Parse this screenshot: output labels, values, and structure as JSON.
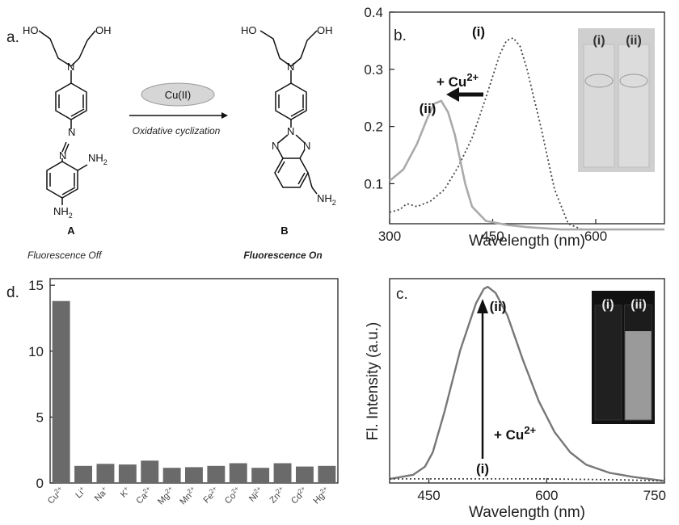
{
  "panel_a": {
    "label": "a.",
    "reagent": "Cu(II)",
    "reaction_note": "Oxidative cyclization",
    "compound_a": {
      "name": "A",
      "state": "Fluorescence Off"
    },
    "compound_b": {
      "name": "B",
      "state": "Fluorescence On"
    },
    "atoms": {
      "ho": "HO",
      "oh": "OH",
      "n": "N",
      "nh": "NH",
      "two": "2"
    }
  },
  "panel_b": {
    "label": "b.",
    "ann_i": "(i)",
    "ann_ii": "(ii)",
    "ann_cu": "+ Cu",
    "ann_cu_sup": "2+",
    "inset_labels": [
      "(i)",
      "(ii)"
    ]
  },
  "panel_c": {
    "label": "c.",
    "ann_i": "(i)",
    "ann_ii": "(ii)",
    "ann_cu": "+ Cu",
    "ann_cu_sup": "2+",
    "inset_labels": [
      "(i)",
      "(ii)"
    ]
  },
  "panel_d": {
    "label": "d."
  },
  "colors": {
    "axis": "#222222",
    "solid_gray": "#aaaaaa",
    "dotted": "#444444",
    "emission": "#777777",
    "bar": "#6a6a6a",
    "inset_light": "#d8d8d8",
    "inset_dark": "#1a1a1a"
  },
  "chart_data": [
    {
      "panel": "b",
      "type": "line",
      "title": "",
      "xlabel": "Wavelength (nm)",
      "ylabel": "",
      "xlim": [
        300,
        700
      ],
      "ylim": [
        0.03,
        0.4
      ],
      "xticks": [
        300,
        450,
        600
      ],
      "yticks": [
        0.1,
        0.2,
        0.3,
        0.4
      ],
      "series": [
        {
          "name": "(i)",
          "style": "dotted",
          "x": [
            300,
            315,
            325,
            340,
            360,
            380,
            400,
            420,
            440,
            460,
            470,
            480,
            490,
            500,
            520,
            540,
            560,
            580,
            600,
            650,
            700
          ],
          "y": [
            0.05,
            0.055,
            0.065,
            0.06,
            0.07,
            0.09,
            0.13,
            0.18,
            0.25,
            0.325,
            0.35,
            0.355,
            0.34,
            0.3,
            0.2,
            0.09,
            0.03,
            0.02,
            0.02,
            0.02,
            0.02
          ]
        },
        {
          "name": "(ii)",
          "style": "solid",
          "x": [
            300,
            320,
            340,
            355,
            365,
            375,
            385,
            395,
            410,
            420,
            440,
            470,
            500,
            550,
            600,
            650,
            700
          ],
          "y": [
            0.105,
            0.125,
            0.17,
            0.215,
            0.24,
            0.245,
            0.225,
            0.185,
            0.1,
            0.06,
            0.035,
            0.028,
            0.024,
            0.02,
            0.02,
            0.02,
            0.02
          ]
        }
      ]
    },
    {
      "panel": "c",
      "type": "line",
      "title": "",
      "xlabel": "Wavelength (nm)",
      "ylabel": "Fl. Intensity (a.u.)",
      "xlim": [
        400,
        750
      ],
      "ylim": [
        0,
        1
      ],
      "xticks": [
        450,
        600,
        750
      ],
      "yticks": [],
      "series": [
        {
          "name": "(ii)",
          "style": "solid",
          "x": [
            400,
            430,
            445,
            455,
            470,
            490,
            510,
            520,
            525,
            535,
            550,
            570,
            590,
            610,
            630,
            650,
            680,
            710,
            750
          ],
          "y": [
            0.02,
            0.04,
            0.08,
            0.15,
            0.35,
            0.65,
            0.88,
            0.95,
            0.96,
            0.93,
            0.82,
            0.6,
            0.4,
            0.25,
            0.15,
            0.09,
            0.05,
            0.03,
            0.01
          ]
        },
        {
          "name": "(i)",
          "style": "dotted",
          "x": [
            400,
            500,
            600,
            700,
            750
          ],
          "y": [
            0.02,
            0.02,
            0.02,
            0.015,
            0.01
          ]
        }
      ]
    },
    {
      "panel": "d",
      "type": "bar",
      "title": "",
      "xlabel": "",
      "ylabel": "",
      "ylim": [
        0,
        15.5
      ],
      "yticks": [
        0,
        5,
        10,
        15
      ],
      "categories": [
        {
          "ion": "Cu",
          "charge": "2+"
        },
        {
          "ion": "Li",
          "charge": "+"
        },
        {
          "ion": "Na",
          "charge": "+"
        },
        {
          "ion": "K",
          "charge": "+"
        },
        {
          "ion": "Ca",
          "charge": "2+"
        },
        {
          "ion": "Mg",
          "charge": "2+"
        },
        {
          "ion": "Mn",
          "charge": "2+"
        },
        {
          "ion": "Fe",
          "charge": "2+"
        },
        {
          "ion": "Co",
          "charge": "2+"
        },
        {
          "ion": "Ni",
          "charge": "2+"
        },
        {
          "ion": "Zn",
          "charge": "2+"
        },
        {
          "ion": "Cd",
          "charge": "2+"
        },
        {
          "ion": "Hg",
          "charge": "2+"
        }
      ],
      "values": [
        13.8,
        1.3,
        1.45,
        1.4,
        1.7,
        1.15,
        1.2,
        1.3,
        1.5,
        1.15,
        1.5,
        1.25,
        1.3
      ]
    }
  ]
}
